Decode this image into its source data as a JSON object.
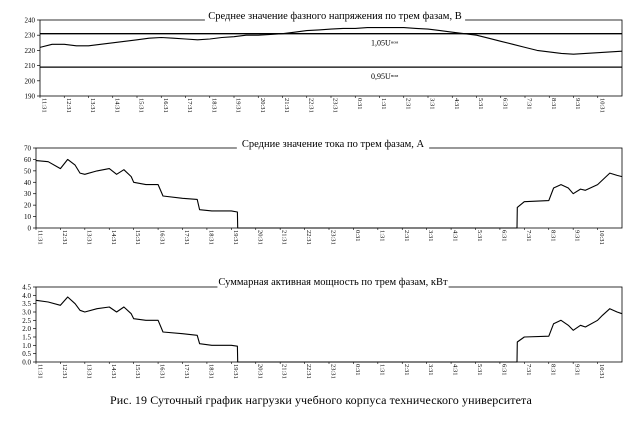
{
  "caption": "Рис. 19 Суточный график нагрузки учебного корпуса технического университета",
  "chart_data": [
    {
      "type": "line",
      "title": "Среднее значение фазного напряжения по трем фазам, В",
      "ylim": [
        190,
        240
      ],
      "yticks": [
        190,
        200,
        210,
        220,
        230,
        240
      ],
      "x_labels": [
        "11:31",
        "12:31",
        "13:31",
        "14:31",
        "15:31",
        "16:31",
        "17:31",
        "18:31",
        "19:31",
        "20:31",
        "21:31",
        "22:31",
        "23:31",
        "0:31",
        "1:31",
        "2:31",
        "3:31",
        "4:31",
        "5:31",
        "6:31",
        "7:31",
        "8:31",
        "9:31",
        "10:31"
      ],
      "reference_lines": [
        {
          "label": "1,05U",
          "sub": "ном",
          "value": 231
        },
        {
          "label": "0,95U",
          "sub": "ном",
          "value": 209
        }
      ],
      "series": [
        {
          "x": [
            11.0,
            11.5,
            12.0,
            12.5,
            13.0,
            13.5,
            14.0,
            14.5,
            15.0,
            15.5,
            16.0,
            16.5,
            17.0,
            17.5,
            18.0,
            18.5,
            19.0,
            19.5,
            20.0,
            20.5,
            21.0,
            21.5,
            22.0,
            22.5,
            23.0,
            23.5,
            24.0,
            24.5,
            25.0,
            25.5,
            26.0,
            26.5,
            27.0,
            27.5,
            28.0,
            28.5,
            29.0,
            29.5,
            30.0,
            30.5,
            31.0,
            31.5,
            32.0,
            32.5,
            33.0,
            33.5,
            34.0,
            34.5,
            35.0
          ],
          "y": [
            222,
            224,
            224,
            223,
            223,
            224,
            225,
            226,
            227,
            228,
            228.5,
            228,
            227.5,
            227,
            227.5,
            228.5,
            229,
            230,
            230,
            230.5,
            231,
            232,
            233,
            233.5,
            234,
            234.5,
            234.5,
            235,
            235,
            235,
            235,
            234.5,
            234,
            233,
            232,
            231,
            230,
            228,
            226,
            224,
            222,
            220,
            219,
            218,
            217.5,
            218,
            218.5,
            219,
            219.5
          ]
        }
      ]
    },
    {
      "type": "line",
      "title": "Средние значение тока по трем фазам, А",
      "ylim": [
        0,
        70
      ],
      "yticks": [
        0,
        10,
        20,
        30,
        40,
        50,
        60,
        70
      ],
      "x_labels": [
        "11:31",
        "12:31",
        "13:31",
        "14:31",
        "15:31",
        "16:31",
        "17:31",
        "18:31",
        "19:31",
        "20:31",
        "21:31",
        "22:31",
        "23:31",
        "0:31",
        "1:31",
        "2:31",
        "3:31",
        "4:31",
        "5:31",
        "6:31",
        "7:31",
        "8:31",
        "9:31",
        "10:31"
      ],
      "series": [
        {
          "x": [
            11.0,
            11.5,
            12.0,
            12.3,
            12.6,
            12.8,
            13.0,
            13.5,
            14.0,
            14.3,
            14.6,
            14.9,
            15.0,
            15.5,
            16.0,
            16.2,
            17.0,
            17.6,
            17.7,
            18.2,
            18.8,
            19.0,
            19.25,
            19.26,
            30.7,
            30.71,
            31.0,
            32.0,
            32.2,
            32.5,
            32.8,
            33.0,
            33.3,
            33.5,
            34.0,
            34.2,
            34.5,
            34.8,
            35.0
          ],
          "y": [
            59,
            58,
            52,
            60,
            55,
            48,
            47,
            50,
            52,
            47,
            51,
            45,
            40,
            38,
            38,
            28,
            26,
            25,
            16,
            15,
            15,
            15,
            14,
            0,
            0,
            18,
            23,
            24,
            35,
            38,
            35,
            30,
            34,
            33,
            38,
            42,
            48,
            46,
            45
          ]
        }
      ]
    },
    {
      "type": "line",
      "title": "Суммарная активная мощность по трем фазам, кВт",
      "ylim": [
        0,
        4.5
      ],
      "yticks": [
        0,
        0.5,
        1.0,
        1.5,
        2.0,
        2.5,
        3.0,
        3.5,
        4.0,
        4.5
      ],
      "x_labels": [
        "11:31",
        "12:31",
        "13:31",
        "14:31",
        "15:31",
        "16:31",
        "17:31",
        "18:31",
        "19:31",
        "20:31",
        "21:31",
        "22:31",
        "23:31",
        "0:31",
        "1:31",
        "2:31",
        "3:31",
        "4:31",
        "5:31",
        "6:31",
        "7:31",
        "8:31",
        "9:31",
        "10:31"
      ],
      "series": [
        {
          "x": [
            11.0,
            11.5,
            12.0,
            12.3,
            12.6,
            12.8,
            13.0,
            13.5,
            14.0,
            14.3,
            14.6,
            14.9,
            15.0,
            15.5,
            16.0,
            16.2,
            17.0,
            17.6,
            17.7,
            18.2,
            18.8,
            19.0,
            19.25,
            19.26,
            30.7,
            30.71,
            31.0,
            32.0,
            32.2,
            32.5,
            32.8,
            33.0,
            33.3,
            33.5,
            34.0,
            34.2,
            34.5,
            34.8,
            35.0
          ],
          "y": [
            3.7,
            3.6,
            3.4,
            3.9,
            3.5,
            3.1,
            3.0,
            3.2,
            3.3,
            3.0,
            3.3,
            2.9,
            2.6,
            2.5,
            2.5,
            1.8,
            1.7,
            1.6,
            1.1,
            1.0,
            1.0,
            1.0,
            0.95,
            0,
            0,
            1.2,
            1.5,
            1.55,
            2.3,
            2.5,
            2.2,
            1.9,
            2.2,
            2.1,
            2.5,
            2.8,
            3.2,
            3.0,
            2.9
          ]
        }
      ]
    }
  ]
}
